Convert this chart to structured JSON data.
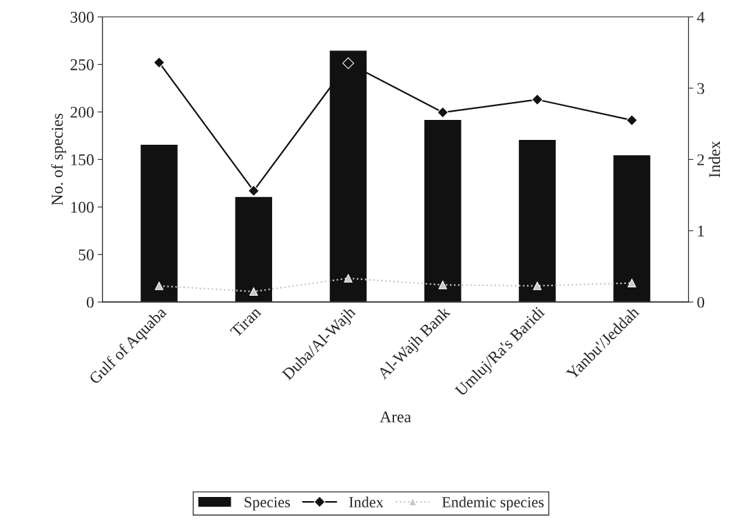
{
  "chart_data": {
    "type": "bar",
    "xlabel": "Area",
    "ylabel": "No. of species",
    "y2label": "Index",
    "categories": [
      "Gulf of Aquaba",
      "Tiran",
      "Duba/Al-Wajh",
      "Al-Wajh Bank",
      "Umluj/Ra's Baridi",
      "Yanbu'/Jeddah"
    ],
    "series": [
      {
        "name": "Species",
        "color": "#111111",
        "values": [
          166,
          111,
          265,
          192,
          171,
          155
        ]
      },
      {
        "name": "Index",
        "type": "line",
        "axis": "y2",
        "color": "#111111",
        "marker": "diamond",
        "line_style": "solid",
        "values": [
          3.36,
          1.56,
          3.35,
          2.66,
          2.84,
          2.55
        ]
      },
      {
        "name": "Endemic species",
        "type": "line",
        "color": "#c8c8c8",
        "marker": "triangle",
        "line_style": "dotted",
        "values": [
          17,
          11,
          25,
          18,
          17,
          20
        ]
      }
    ],
    "ylim": [
      0,
      300
    ],
    "yticks": [
      0,
      50,
      100,
      150,
      200,
      250,
      300
    ],
    "y2lim": [
      0,
      4
    ],
    "y2ticks": [
      0,
      1,
      2,
      3,
      4
    ],
    "grid": false,
    "legend": "bottom"
  }
}
